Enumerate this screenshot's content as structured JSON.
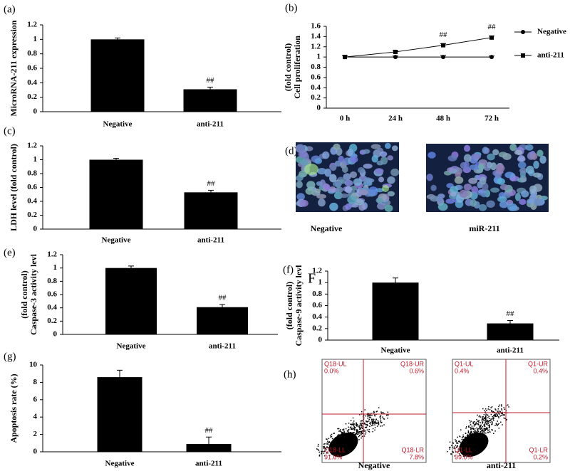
{
  "chart_data": [
    {
      "type": "bar",
      "panel": "(a)",
      "ylabel": [
        "MicroRNA-211 expression"
      ],
      "categories": [
        "Negative",
        "anti-211"
      ],
      "values": [
        1,
        0.31
      ],
      "errors": [
        0.02,
        0.03
      ],
      "value_annotations": [
        null,
        "##"
      ],
      "color": "#000000",
      "ylim": [
        0,
        1.2
      ],
      "yticks": [
        0,
        0.2,
        0.4,
        0.6,
        0.8,
        1,
        1.2
      ]
    },
    {
      "type": "line",
      "panel": "(b)",
      "ylabel": [
        "Cell proliferation",
        "(fold control)"
      ],
      "categories": [
        "0 h",
        "24 h",
        "48 h",
        "72 h"
      ],
      "series": [
        {
          "name": "Negative",
          "color": "#000000",
          "marker": "circle",
          "values": [
            1,
            1,
            1,
            1
          ],
          "errors": [
            0.03,
            0.02,
            0.03,
            0.02
          ]
        },
        {
          "name": "anti-211",
          "color": "#000000",
          "marker": "square",
          "values": [
            1,
            1.1,
            1.23,
            1.38
          ],
          "errors": [
            0.03,
            0.02,
            0.03,
            0.03
          ],
          "value_annotations": [
            null,
            null,
            "##",
            "##"
          ]
        }
      ],
      "ylim": [
        0,
        1.6
      ],
      "yticks": [
        0,
        0.2,
        0.4,
        0.6,
        0.8,
        1,
        1.2,
        1.4,
        1.6
      ],
      "legend": "right"
    },
    {
      "type": "bar",
      "panel": "(c)",
      "ylabel": [
        "LDH level (fold control)"
      ],
      "categories": [
        "Negative",
        "anti-211"
      ],
      "values": [
        1,
        0.53
      ],
      "errors": [
        0.02,
        0.03
      ],
      "value_annotations": [
        null,
        "##"
      ],
      "color": "#000000",
      "ylim": [
        0,
        1.2
      ],
      "yticks": [
        0,
        0.2,
        0.4,
        0.6,
        0.8,
        1,
        1.2
      ]
    },
    {
      "type": "bar",
      "panel": "(e)",
      "ylabel": [
        "Caspase-3 activity levl",
        "(fold control)"
      ],
      "categories": [
        "Negative",
        "anti-211"
      ],
      "values": [
        1,
        0.41
      ],
      "errors": [
        0.03,
        0.04
      ],
      "value_annotations": [
        null,
        "##"
      ],
      "color": "#000000",
      "ylim": [
        0,
        1.2
      ],
      "yticks": [
        0,
        0.2,
        0.4,
        0.6,
        0.8,
        1,
        1.2
      ]
    },
    {
      "type": "bar",
      "panel": "(f)",
      "subpanel": "F",
      "ylabel": [
        "Caspase-9 activity levl",
        "(fold control)"
      ],
      "categories": [
        "Negative",
        "anti-211"
      ],
      "values": [
        1,
        0.29
      ],
      "errors": [
        0.08,
        0.05
      ],
      "value_annotations": [
        null,
        "##"
      ],
      "color": "#000000",
      "ylim": [
        0,
        1.2
      ],
      "yticks": [
        0,
        0.2,
        0.4,
        0.6,
        0.8,
        1,
        1.2
      ]
    },
    {
      "type": "bar",
      "panel": "(g)",
      "ylabel": [
        "Apoptosis rate (%)"
      ],
      "categories": [
        "Negative",
        "anti-211"
      ],
      "values": [
        8.6,
        0.9
      ],
      "errors": [
        0.8,
        0.8
      ],
      "value_annotations": [
        null,
        "##"
      ],
      "color": "#000000",
      "ylim": [
        0,
        10
      ],
      "yticks": [
        0,
        2,
        4,
        6,
        8,
        10
      ]
    }
  ],
  "images": [
    {
      "panel": "(d)",
      "captions": [
        "Negative",
        "miR-211"
      ]
    },
    {
      "panel": "(h)",
      "plots": [
        {
          "caption": "Negative",
          "quadrants": [
            [
              "Q18-UL",
              "0.0%"
            ],
            [
              "Q18-UR",
              "0.6%"
            ],
            [
              "Q18-LL",
              "91.6%"
            ],
            [
              "Q18-LR",
              "7.8%"
            ]
          ]
        },
        {
          "caption": "anti-211",
          "quadrants": [
            [
              "Q1-UL",
              "0.4%"
            ],
            [
              "Q1-UR",
              "0.4%"
            ],
            [
              "Q1-LL",
              "99.0%"
            ],
            [
              "Q1-LR",
              "0.2%"
            ]
          ]
        }
      ]
    }
  ]
}
